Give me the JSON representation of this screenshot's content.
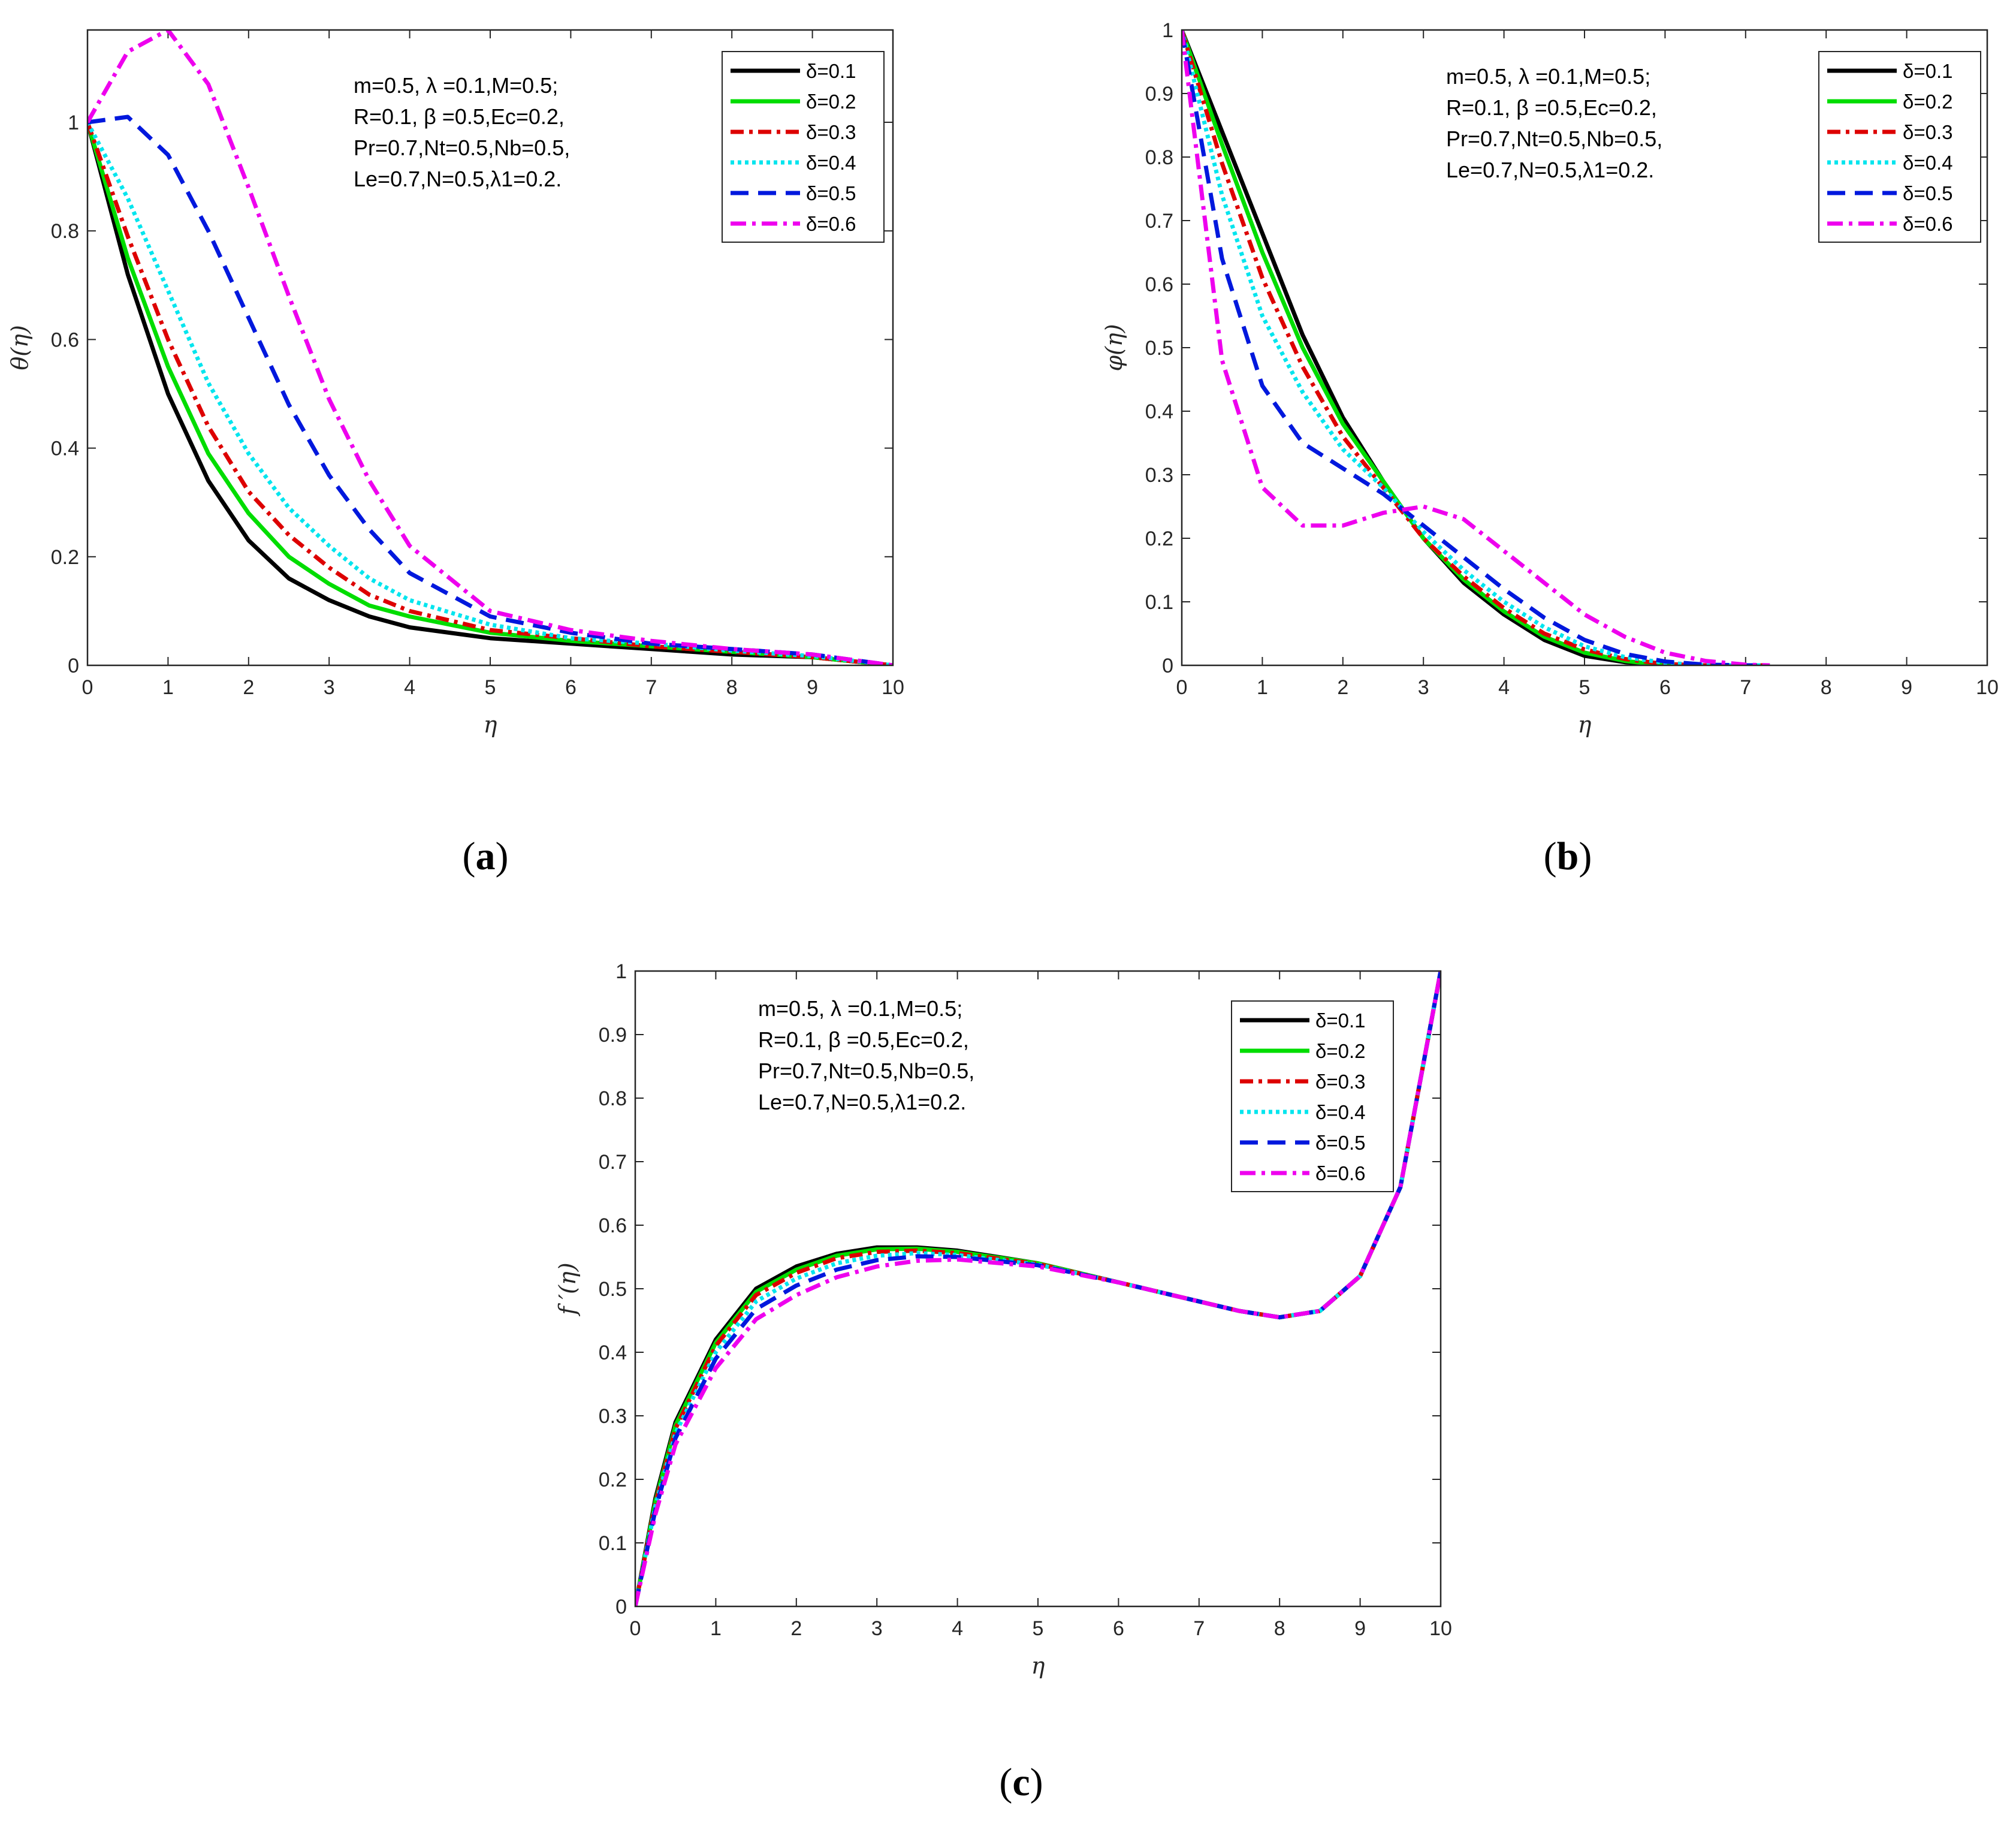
{
  "legend_labels": [
    "δ=0.1",
    "δ=0.2",
    "δ=0.3",
    "δ=0.4",
    "δ=0.5",
    "δ=0.6"
  ],
  "series_colors": [
    "#000000",
    "#00dd00",
    "#dd0000",
    "#00e5ee",
    "#0018dd",
    "#ee00ee"
  ],
  "annotation": [
    "m=0.5, λ =0.1,M=0.5;",
    "R=0.1, β =0.5,Ec=0.2,",
    "Pr=0.7,Nt=0.5,Nb=0.5,",
    "Le=0.7,N=0.5,λ1=0.2."
  ],
  "chart_data": [
    {
      "type": "line",
      "panel_label": "a",
      "xlabel": "η",
      "ylabel": "θ(η)",
      "xlim": [
        0,
        10
      ],
      "ylim": [
        0,
        1.17
      ],
      "xticks": [
        0,
        1,
        2,
        3,
        4,
        5,
        6,
        7,
        8,
        9,
        10
      ],
      "yticks": [
        0,
        0.2,
        0.4,
        0.6,
        0.8,
        1
      ],
      "legend_position": "top-right",
      "x": [
        0,
        0.5,
        1,
        1.5,
        2,
        2.5,
        3,
        3.5,
        4,
        5,
        6,
        7,
        8,
        9,
        10
      ],
      "series": [
        {
          "name": "δ=0.1",
          "values": [
            1,
            0.72,
            0.5,
            0.34,
            0.23,
            0.16,
            0.12,
            0.09,
            0.07,
            0.05,
            0.04,
            0.03,
            0.02,
            0.015,
            0
          ]
        },
        {
          "name": "δ=0.2",
          "values": [
            1,
            0.75,
            0.55,
            0.39,
            0.28,
            0.2,
            0.15,
            0.11,
            0.09,
            0.06,
            0.045,
            0.035,
            0.025,
            0.015,
            0
          ]
        },
        {
          "name": "δ=0.3",
          "values": [
            1,
            0.79,
            0.6,
            0.44,
            0.32,
            0.24,
            0.18,
            0.13,
            0.1,
            0.065,
            0.05,
            0.035,
            0.025,
            0.015,
            0
          ]
        },
        {
          "name": "δ=0.4",
          "values": [
            1,
            0.86,
            0.69,
            0.52,
            0.39,
            0.29,
            0.22,
            0.16,
            0.12,
            0.075,
            0.05,
            0.04,
            0.027,
            0.017,
            0
          ]
        },
        {
          "name": "δ=0.5",
          "values": [
            1,
            1.01,
            0.94,
            0.8,
            0.64,
            0.48,
            0.35,
            0.25,
            0.17,
            0.09,
            0.06,
            0.04,
            0.03,
            0.02,
            0
          ]
        },
        {
          "name": "δ=0.6",
          "values": [
            1,
            1.13,
            1.17,
            1.07,
            0.88,
            0.68,
            0.49,
            0.34,
            0.22,
            0.1,
            0.065,
            0.045,
            0.03,
            0.02,
            0
          ]
        }
      ]
    },
    {
      "type": "line",
      "panel_label": "b",
      "xlabel": "η",
      "ylabel": "φ(η)",
      "xlim": [
        0,
        10
      ],
      "ylim": [
        0,
        1
      ],
      "xticks": [
        0,
        1,
        2,
        3,
        4,
        5,
        6,
        7,
        8,
        9,
        10
      ],
      "yticks": [
        0,
        0.1,
        0.2,
        0.3,
        0.4,
        0.5,
        0.6,
        0.7,
        0.8,
        0.9,
        1
      ],
      "legend_position": "top-right",
      "x": [
        0,
        0.5,
        1,
        1.5,
        2,
        2.5,
        3,
        3.5,
        4,
        4.5,
        5,
        5.5,
        6,
        6.5,
        7,
        7.3
      ],
      "series": [
        {
          "name": "δ=0.1",
          "values": [
            1,
            0.84,
            0.68,
            0.52,
            0.39,
            0.29,
            0.2,
            0.13,
            0.08,
            0.04,
            0.015,
            0.005,
            0,
            0,
            0,
            0
          ]
        },
        {
          "name": "δ=0.2",
          "values": [
            1,
            0.82,
            0.65,
            0.5,
            0.38,
            0.29,
            0.2,
            0.135,
            0.085,
            0.045,
            0.02,
            0.007,
            0,
            0,
            0,
            0
          ]
        },
        {
          "name": "δ=0.3",
          "values": [
            1,
            0.79,
            0.61,
            0.47,
            0.36,
            0.28,
            0.2,
            0.14,
            0.09,
            0.05,
            0.025,
            0.01,
            0.002,
            0,
            0,
            0
          ]
        },
        {
          "name": "δ=0.4",
          "values": [
            1,
            0.74,
            0.55,
            0.43,
            0.34,
            0.28,
            0.21,
            0.15,
            0.1,
            0.06,
            0.03,
            0.013,
            0.004,
            0,
            0,
            0
          ]
        },
        {
          "name": "δ=0.5",
          "values": [
            1,
            0.64,
            0.44,
            0.35,
            0.31,
            0.27,
            0.22,
            0.17,
            0.12,
            0.075,
            0.04,
            0.018,
            0.006,
            0.001,
            0,
            0
          ]
        },
        {
          "name": "δ=0.6",
          "values": [
            1,
            0.48,
            0.28,
            0.22,
            0.22,
            0.24,
            0.25,
            0.23,
            0.18,
            0.13,
            0.08,
            0.045,
            0.02,
            0.007,
            0.001,
            0
          ]
        }
      ]
    },
    {
      "type": "line",
      "panel_label": "c",
      "xlabel": "η",
      "ylabel": "f ′(η)",
      "xlim": [
        0,
        10
      ],
      "ylim": [
        0,
        1
      ],
      "xticks": [
        0,
        1,
        2,
        3,
        4,
        5,
        6,
        7,
        8,
        9,
        10
      ],
      "yticks": [
        0,
        0.1,
        0.2,
        0.3,
        0.4,
        0.5,
        0.6,
        0.7,
        0.8,
        0.9,
        1
      ],
      "legend_position": "top-right",
      "x": [
        0,
        0.25,
        0.5,
        1,
        1.5,
        2,
        2.5,
        3,
        3.5,
        4,
        5,
        6,
        7,
        7.5,
        8,
        8.5,
        9,
        9.5,
        10
      ],
      "series": [
        {
          "name": "δ=0.1",
          "values": [
            0,
            0.17,
            0.29,
            0.42,
            0.5,
            0.535,
            0.555,
            0.565,
            0.565,
            0.56,
            0.54,
            0.51,
            0.48,
            0.465,
            0.455,
            0.465,
            0.52,
            0.66,
            1
          ]
        },
        {
          "name": "δ=0.2",
          "values": [
            0,
            0.165,
            0.285,
            0.415,
            0.495,
            0.53,
            0.552,
            0.562,
            0.563,
            0.558,
            0.54,
            0.51,
            0.48,
            0.465,
            0.455,
            0.465,
            0.52,
            0.66,
            1
          ]
        },
        {
          "name": "δ=0.3",
          "values": [
            0,
            0.162,
            0.28,
            0.41,
            0.49,
            0.525,
            0.548,
            0.558,
            0.56,
            0.556,
            0.539,
            0.51,
            0.48,
            0.465,
            0.455,
            0.465,
            0.52,
            0.66,
            1
          ]
        },
        {
          "name": "δ=0.4",
          "values": [
            0,
            0.158,
            0.273,
            0.4,
            0.48,
            0.516,
            0.54,
            0.552,
            0.556,
            0.553,
            0.538,
            0.51,
            0.48,
            0.465,
            0.455,
            0.465,
            0.52,
            0.66,
            1
          ]
        },
        {
          "name": "δ=0.5",
          "values": [
            0,
            0.152,
            0.265,
            0.39,
            0.468,
            0.505,
            0.53,
            0.545,
            0.551,
            0.55,
            0.537,
            0.51,
            0.48,
            0.465,
            0.455,
            0.465,
            0.52,
            0.66,
            1
          ]
        },
        {
          "name": "δ=0.6",
          "values": [
            0,
            0.145,
            0.255,
            0.375,
            0.452,
            0.49,
            0.518,
            0.535,
            0.544,
            0.546,
            0.535,
            0.51,
            0.48,
            0.465,
            0.455,
            0.465,
            0.52,
            0.66,
            1
          ]
        }
      ]
    }
  ]
}
